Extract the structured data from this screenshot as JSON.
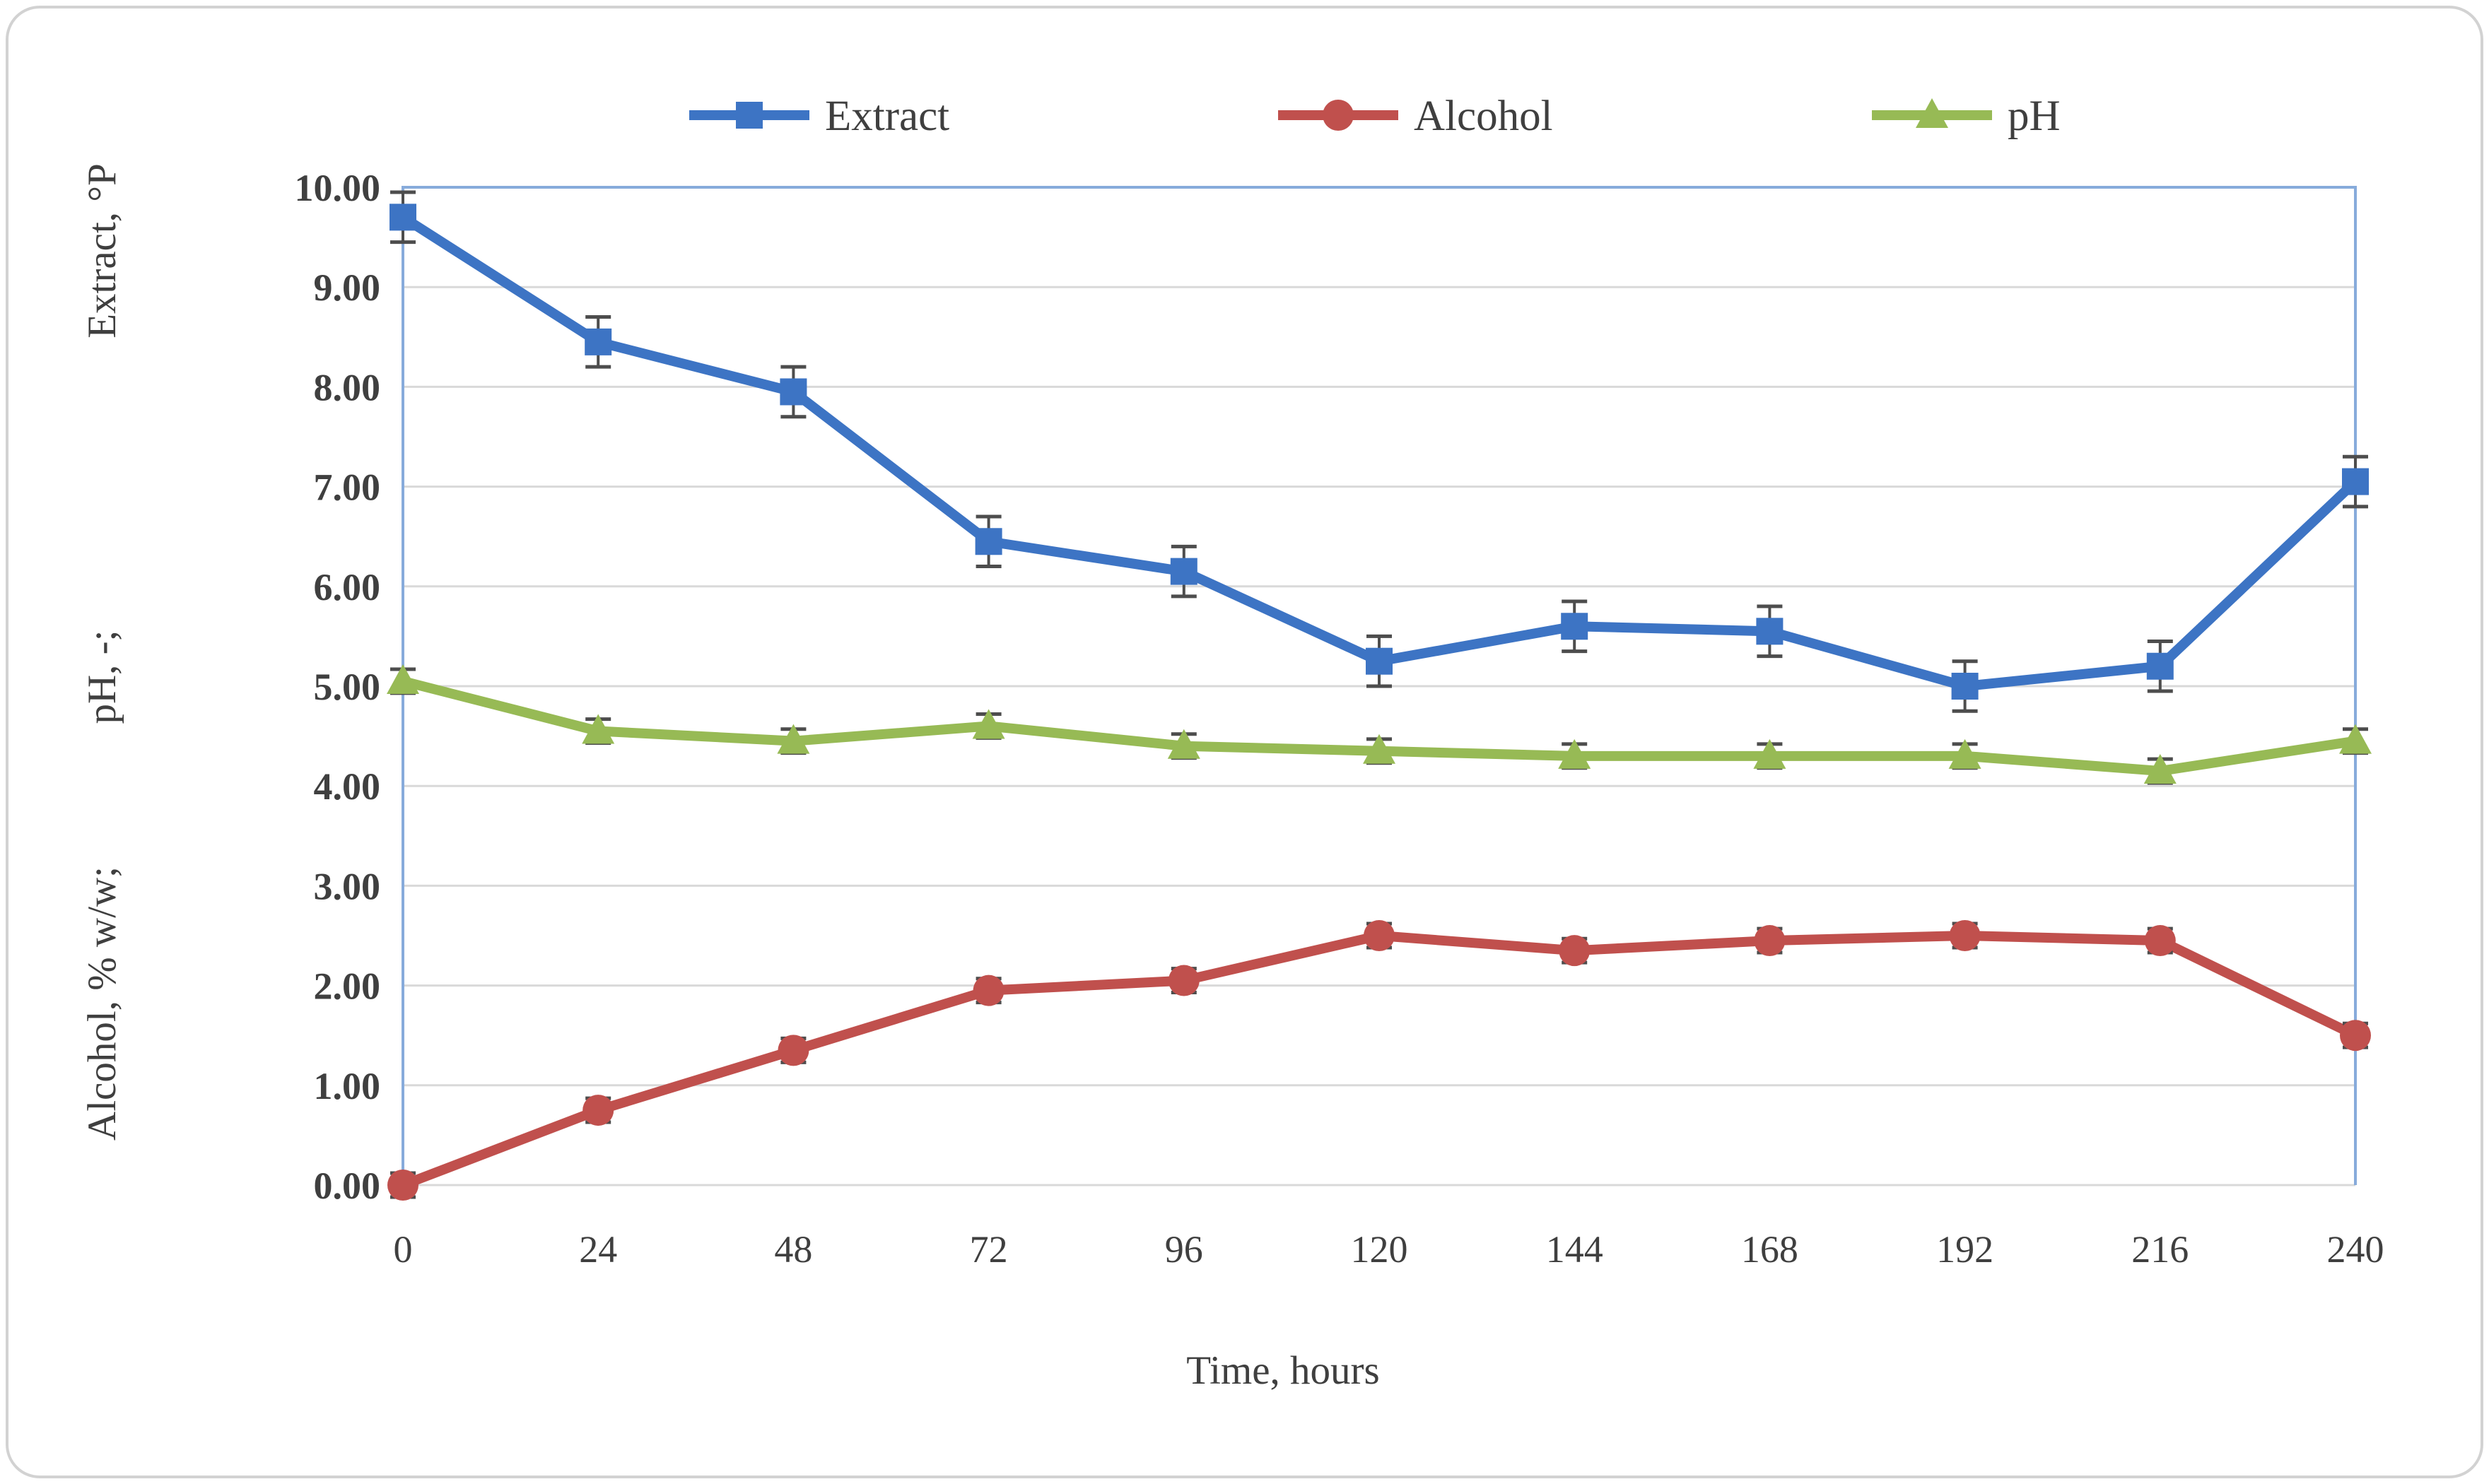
{
  "figure": {
    "kind": "scientific line chart",
    "xlabel": "Time, hours",
    "ylabel_segments": [
      "Alcohol, % w/w;",
      "pH, -;",
      "Extract, °P"
    ]
  },
  "chart_data": {
    "type": "line",
    "title": "",
    "xlabel": "Time, hours",
    "ylabel": "Alcohol, % w/w;  pH, -;  Extract, °P",
    "x": [
      0,
      24,
      48,
      72,
      96,
      120,
      144,
      168,
      192,
      216,
      240
    ],
    "ylim": [
      0,
      10
    ],
    "ytick_step": 1,
    "ytick_decimals": 2,
    "grid": true,
    "legend_position": "top",
    "error_bars": true,
    "series": [
      {
        "name": "Extract",
        "marker": "square",
        "color": "#3d74c4",
        "error": 0.25,
        "values": [
          9.7,
          8.45,
          7.95,
          6.45,
          6.15,
          5.25,
          5.6,
          5.55,
          5.0,
          5.2,
          7.05
        ]
      },
      {
        "name": "Alcohol",
        "marker": "circle",
        "color": "#c0504d",
        "error": 0.12,
        "values": [
          0.0,
          0.75,
          1.35,
          1.95,
          2.05,
          2.5,
          2.35,
          2.45,
          2.5,
          2.45,
          1.5
        ]
      },
      {
        "name": "pH",
        "marker": "triangle",
        "color": "#97ba55",
        "error": 0.12,
        "values": [
          5.05,
          4.55,
          4.45,
          4.6,
          4.4,
          4.35,
          4.3,
          4.3,
          4.3,
          4.15,
          4.45
        ]
      }
    ],
    "colors": {
      "axis_text": "#3f3f3f",
      "gridline": "#d9d9d9",
      "plot_border": "#87abdb",
      "error_bar": "#4d4d4d",
      "panel_border": "#d2d2d2"
    }
  }
}
